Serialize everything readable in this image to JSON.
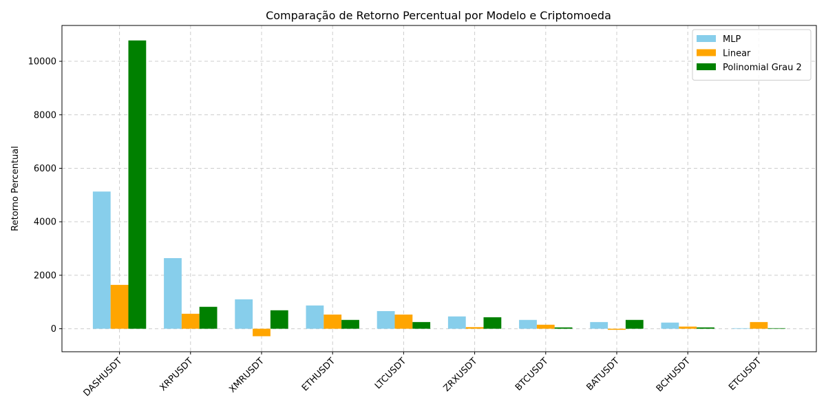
{
  "chart_data": {
    "type": "bar",
    "title": "Comparação de Retorno Percentual por Modelo e Criptomoeda",
    "xlabel": "",
    "ylabel": "Retorno Percentual",
    "categories": [
      "DASHUSDT",
      "XRPUSDT",
      "XMRUSDT",
      "ETHUSDT",
      "LTCUSDT",
      "ZRXUSDT",
      "BTCUSDT",
      "BATUSDT",
      "BCHUSDT",
      "ETCUSDT"
    ],
    "series": [
      {
        "name": "MLP",
        "color": "#87ceeb",
        "values": [
          5130,
          2640,
          1100,
          870,
          660,
          460,
          330,
          250,
          230,
          20
        ]
      },
      {
        "name": "Linear",
        "color": "#ffa500",
        "values": [
          1640,
          560,
          -280,
          530,
          530,
          60,
          150,
          -40,
          80,
          250
        ]
      },
      {
        "name": "Polinomial Grau 2",
        "color": "#008000",
        "values": [
          10780,
          820,
          690,
          330,
          250,
          430,
          50,
          330,
          50,
          20
        ]
      }
    ],
    "yticks": [
      0,
      2000,
      4000,
      6000,
      8000,
      10000
    ],
    "ylim": [
      -860,
      11340
    ],
    "grid": true,
    "legend_position": "top-right"
  }
}
